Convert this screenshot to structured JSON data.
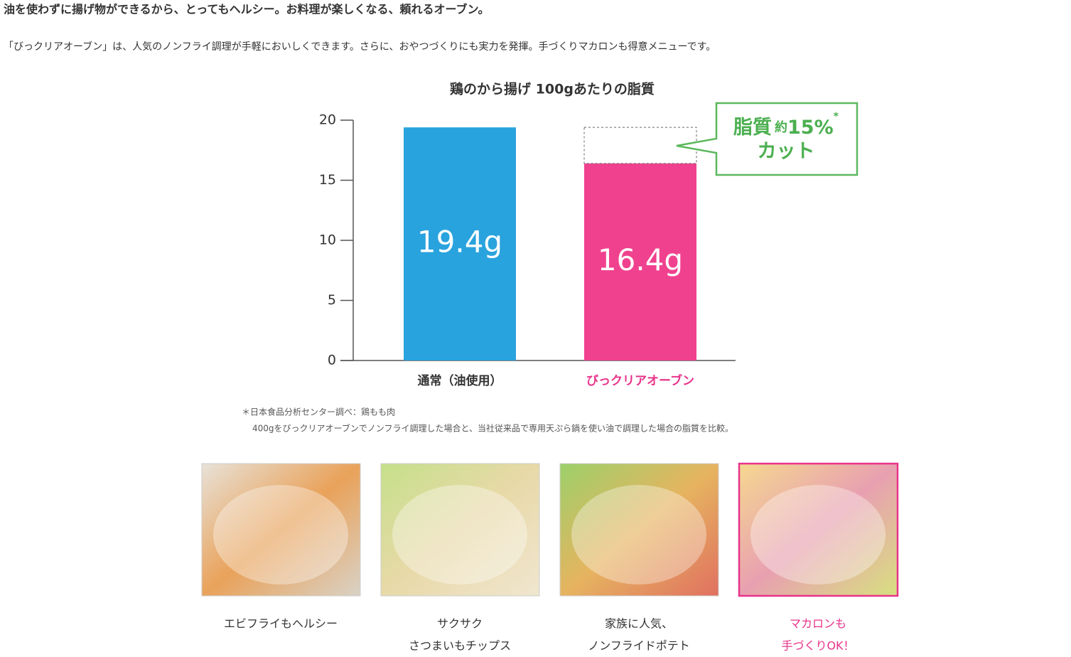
{
  "header": {
    "title": "油を使わずに揚げ物ができるから、とってもヘルシー。お料理が楽しくなる、頼れるオーブン。"
  },
  "intro": "「びっクリアオーブン」は、人気のノンフライ調理が手軽においしくできます。さらに、おやつづくりにも実力を発揮。手づくりマカロンも得意メニューです。",
  "chart_data": {
    "type": "bar",
    "title": "鶏のから揚げ 100gあたりの脂質",
    "categories": [
      "通常（油使用）",
      "びっクリアオーブン"
    ],
    "values": [
      19.4,
      16.4
    ],
    "value_labels": [
      "19.4g",
      "16.4g"
    ],
    "colors": [
      "#29a3de",
      "#f0418e"
    ],
    "label_colors": [
      "#333333",
      "#e8338a"
    ],
    "ylim": [
      0,
      20
    ],
    "yticks": [
      0,
      5,
      10,
      15,
      20
    ],
    "callout": {
      "word": "脂質",
      "approx": "約",
      "amount": "15%",
      "mark": "*",
      "action": "カット"
    }
  },
  "footnote": [
    "＊日本食品分析センター調べ：鶏もも肉",
    "400gをびっクリアオーブンでノンフライ調理した場合と、当社従来品で専用天ぷら鍋を使い油で調理した場合の脂質を比較。"
  ],
  "gallery": [
    {
      "caption": [
        "エビフライもヘルシー"
      ]
    },
    {
      "caption": [
        "サクサク",
        "さつまいもチップス"
      ]
    },
    {
      "caption": [
        "家族に人気、",
        "ノンフライドポテト"
      ]
    },
    {
      "caption": [
        "マカロンも",
        "手づくりOK！"
      ]
    }
  ]
}
